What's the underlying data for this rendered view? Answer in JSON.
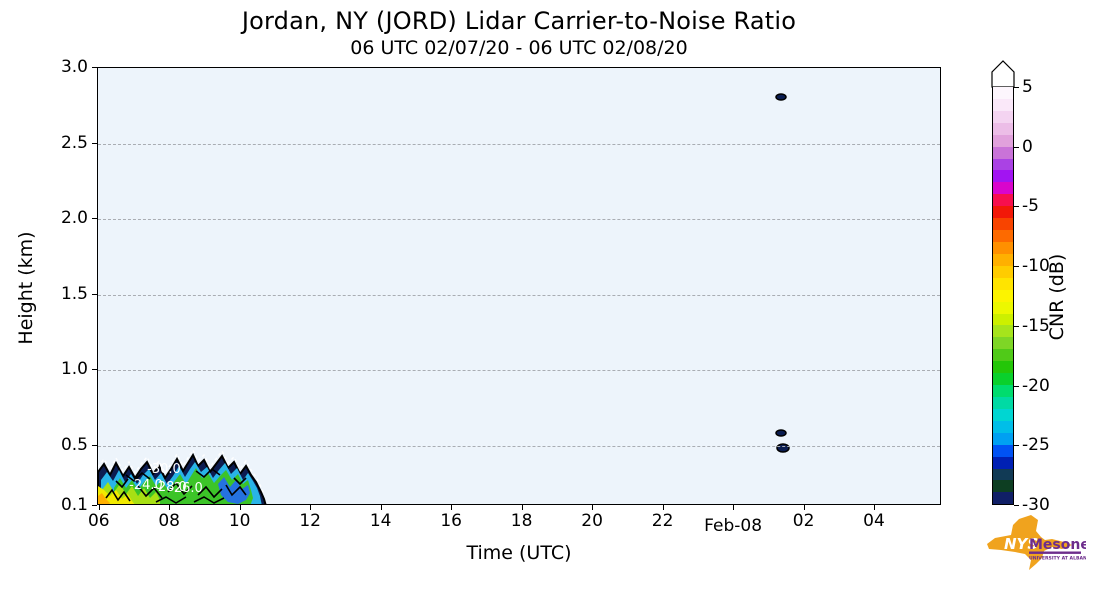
{
  "header": {
    "title": "Jordan, NY (JORD) Lidar Carrier-to-Noise Ratio",
    "subtitle": "06 UTC 02/07/20 - 06 UTC 02/08/20"
  },
  "chart_data": {
    "type": "heatmap",
    "station": "Jordan, NY (JORD)",
    "quantity": "Lidar Carrier-to-Noise Ratio",
    "xlabel": "Time (UTC)",
    "ylabel": "Height (km)",
    "background_color": "#edf4fb",
    "x_domain_hours": [
      5.95,
      29.9
    ],
    "x_ticks": [
      {
        "hour": 6,
        "label": "06"
      },
      {
        "hour": 8,
        "label": "08"
      },
      {
        "hour": 10,
        "label": "10"
      },
      {
        "hour": 12,
        "label": "12"
      },
      {
        "hour": 14,
        "label": "14"
      },
      {
        "hour": 16,
        "label": "16"
      },
      {
        "hour": 18,
        "label": "18"
      },
      {
        "hour": 20,
        "label": "20"
      },
      {
        "hour": 22,
        "label": "22"
      },
      {
        "hour": 24,
        "label": "Feb-08",
        "is_date": true
      },
      {
        "hour": 26,
        "label": "02"
      },
      {
        "hour": 28,
        "label": "04"
      }
    ],
    "y_domain_km": [
      0.1,
      3.0
    ],
    "y_ticks": [
      {
        "value": 3.0,
        "label": "3.0"
      },
      {
        "value": 2.5,
        "label": "2.5"
      },
      {
        "value": 2.0,
        "label": "2.0"
      },
      {
        "value": 1.5,
        "label": "1.5"
      },
      {
        "value": 1.0,
        "label": "1.0"
      },
      {
        "value": 0.5,
        "label": "0.5"
      },
      {
        "value": 0.1,
        "label": "0.1"
      }
    ],
    "grid_values": [
      2.5,
      2.0,
      1.5,
      1.0,
      0.5
    ],
    "colorbar": {
      "label": "CNR (dB)",
      "min": -30,
      "max": 5,
      "extend_max": true,
      "tick_values": [
        5,
        0,
        -5,
        -10,
        -15,
        -20,
        -25,
        -30
      ],
      "band_colors": [
        "#fdf6fd",
        "#fae8f9",
        "#f4d4f1",
        "#ecbde7",
        "#e1a1dc",
        "#c973d8",
        "#aa42e4",
        "#a214f2",
        "#d905cc",
        "#f70f4e",
        "#f21808",
        "#f84400",
        "#fd6a00",
        "#ff9000",
        "#ffb000",
        "#ffcc00",
        "#ffe400",
        "#fcf400",
        "#ecf800",
        "#ccf000",
        "#a6e41c",
        "#7ed626",
        "#50ca18",
        "#24c608",
        "#0ad02c",
        "#00dc6e",
        "#00daa4",
        "#00d6d2",
        "#00bee8",
        "#00a0f2",
        "#0052f4",
        "#0020b4",
        "#113a55",
        "#0d3e22",
        "#101f66"
      ]
    },
    "cloud_feature": {
      "description": "low-level CNR returns",
      "time_range_utc": [
        "06:00",
        "10:20"
      ],
      "height_range_km": [
        0.1,
        0.4
      ],
      "cnr_range_db": [
        -30,
        -12
      ],
      "contour_labels": [
        {
          "text": "-30.0",
          "x": 66,
          "y": 405
        },
        {
          "text": "-24.0",
          "x": 48,
          "y": 421
        },
        {
          "text": "-28.0",
          "x": 72,
          "y": 423
        },
        {
          "text": "-26.0",
          "x": 88,
          "y": 424
        }
      ],
      "layers": [
        {
          "color": "#0c1c50",
          "stroke": "#000000",
          "points": [
            [
              0,
              404
            ],
            [
              6,
              396
            ],
            [
              12,
              407
            ],
            [
              18,
              395
            ],
            [
              25,
              408
            ],
            [
              31,
              399
            ],
            [
              37,
              410
            ],
            [
              43,
              401
            ],
            [
              49,
              394
            ],
            [
              55,
              406
            ],
            [
              61,
              398
            ],
            [
              67,
              410
            ],
            [
              73,
              401
            ],
            [
              79,
              391
            ],
            [
              85,
              403
            ],
            [
              90,
              395
            ],
            [
              95,
              387
            ],
            [
              100,
              398
            ],
            [
              106,
              392
            ],
            [
              112,
              404
            ],
            [
              118,
              396
            ],
            [
              124,
              388
            ],
            [
              130,
              400
            ],
            [
              136,
              394
            ],
            [
              142,
              406
            ],
            [
              148,
              398
            ],
            [
              153,
              407
            ],
            [
              158,
              414
            ],
            [
              163,
              424
            ],
            [
              166,
              431
            ],
            [
              168,
              438
            ],
            [
              0,
              438
            ]
          ]
        },
        {
          "color": "#29b4e8",
          "points": [
            [
              3,
              412
            ],
            [
              9,
              404
            ],
            [
              15,
              413
            ],
            [
              21,
              402
            ],
            [
              27,
              414
            ],
            [
              33,
              406
            ],
            [
              39,
              416
            ],
            [
              45,
              407
            ],
            [
              51,
              401
            ],
            [
              57,
              412
            ],
            [
              63,
              405
            ],
            [
              69,
              416
            ],
            [
              75,
              408
            ],
            [
              81,
              398
            ],
            [
              87,
              409
            ],
            [
              92,
              401
            ],
            [
              97,
              394
            ],
            [
              103,
              404
            ],
            [
              109,
              399
            ],
            [
              115,
              410
            ],
            [
              121,
              402
            ],
            [
              127,
              395
            ],
            [
              133,
              406
            ],
            [
              139,
              400
            ],
            [
              145,
              412
            ],
            [
              150,
              405
            ],
            [
              155,
              413
            ],
            [
              159,
              420
            ],
            [
              162,
              428
            ],
            [
              164,
              438
            ],
            [
              3,
              438
            ]
          ]
        },
        {
          "color": "#3cc428",
          "points": [
            [
              16,
              420
            ],
            [
              22,
              410
            ],
            [
              28,
              420
            ],
            [
              34,
              412
            ],
            [
              40,
              422
            ],
            [
              46,
              414
            ],
            [
              52,
              408
            ],
            [
              58,
              418
            ],
            [
              64,
              412
            ],
            [
              70,
              422
            ],
            [
              76,
              414
            ],
            [
              82,
              406
            ],
            [
              88,
              416
            ],
            [
              93,
              408
            ],
            [
              98,
              400
            ],
            [
              104,
              410
            ],
            [
              110,
              405
            ],
            [
              116,
              415
            ],
            [
              122,
              408
            ],
            [
              128,
              402
            ],
            [
              134,
              412
            ],
            [
              140,
              406
            ],
            [
              145,
              416
            ],
            [
              150,
              412
            ],
            [
              153,
              422
            ],
            [
              155,
              430
            ],
            [
              152,
              438
            ],
            [
              16,
              438
            ]
          ]
        },
        {
          "color": "#a8e014",
          "points": [
            [
              4,
              422
            ],
            [
              10,
              414
            ],
            [
              16,
              424
            ],
            [
              22,
              416
            ],
            [
              28,
              426
            ],
            [
              34,
              418
            ],
            [
              40,
              428
            ],
            [
              46,
              420
            ],
            [
              52,
              430
            ],
            [
              58,
              424
            ],
            [
              62,
              432
            ],
            [
              62,
              438
            ],
            [
              4,
              438
            ]
          ]
        },
        {
          "color": "#f2ea00",
          "points": [
            [
              0,
              418
            ],
            [
              6,
              422
            ],
            [
              12,
              428
            ],
            [
              18,
              422
            ],
            [
              24,
              431
            ],
            [
              30,
              426
            ],
            [
              34,
              433
            ],
            [
              38,
              438
            ],
            [
              0,
              438
            ]
          ]
        },
        {
          "color": "#ffb000",
          "points": [
            [
              0,
              428
            ],
            [
              4,
              425
            ],
            [
              8,
              431
            ],
            [
              12,
              435
            ],
            [
              10,
              438
            ],
            [
              0,
              438
            ]
          ]
        },
        {
          "color": "#2572e0",
          "points": [
            [
              120,
              416
            ],
            [
              126,
              409
            ],
            [
              132,
              419
            ],
            [
              138,
              412
            ],
            [
              144,
              421
            ],
            [
              150,
              417
            ],
            [
              152,
              425
            ],
            [
              148,
              432
            ],
            [
              140,
              436
            ],
            [
              130,
              434
            ],
            [
              123,
              427
            ]
          ]
        }
      ],
      "squiggles": [
        [
          [
            8,
            430
          ],
          [
            14,
            422
          ],
          [
            20,
            432
          ],
          [
            26,
            424
          ],
          [
            32,
            433
          ]
        ],
        [
          [
            40,
            418
          ],
          [
            48,
            428
          ],
          [
            56,
            420
          ],
          [
            64,
            430
          ]
        ],
        [
          [
            70,
            424
          ],
          [
            78,
            415
          ],
          [
            86,
            426
          ],
          [
            94,
            418
          ]
        ],
        [
          [
            100,
            427
          ],
          [
            108,
            419
          ],
          [
            116,
            429
          ],
          [
            124,
            421
          ]
        ],
        [
          [
            128,
            417
          ],
          [
            134,
            427
          ],
          [
            142,
            419
          ],
          [
            148,
            427
          ]
        ],
        [
          [
            58,
            434
          ],
          [
            68,
            429
          ],
          [
            78,
            435
          ],
          [
            88,
            429
          ]
        ],
        [
          [
            96,
            434
          ],
          [
            106,
            429
          ],
          [
            116,
            435
          ],
          [
            126,
            430
          ]
        ],
        [
          [
            28,
            407
          ],
          [
            36,
            413
          ],
          [
            44,
            405
          ],
          [
            52,
            411
          ]
        ],
        [
          [
            98,
            403
          ],
          [
            106,
            409
          ],
          [
            114,
            401
          ],
          [
            122,
            407
          ]
        ],
        [
          [
            136,
            410
          ],
          [
            142,
            416
          ],
          [
            148,
            410
          ]
        ],
        [
          [
            18,
            413
          ],
          [
            24,
            419
          ],
          [
            30,
            411
          ]
        ]
      ]
    },
    "isolated_points": [
      {
        "time_utc": "01:20",
        "height_km": 2.81,
        "px": [
          683,
          29
        ],
        "rx": 5,
        "ry": 3
      },
      {
        "time_utc": "01:20",
        "height_km": 0.58,
        "px": [
          683,
          365
        ],
        "rx": 5,
        "ry": 3
      },
      {
        "time_utc": "01:20",
        "height_km": 0.48,
        "px": [
          685,
          380
        ],
        "rx": 6,
        "ry": 4
      }
    ]
  },
  "logo": {
    "nys": "NYS",
    "mesonet": "Mesonet",
    "tagline": "UNIVERSITY AT ALBANY",
    "orange": "#f0a31e",
    "purple": "#6d2d8c"
  }
}
